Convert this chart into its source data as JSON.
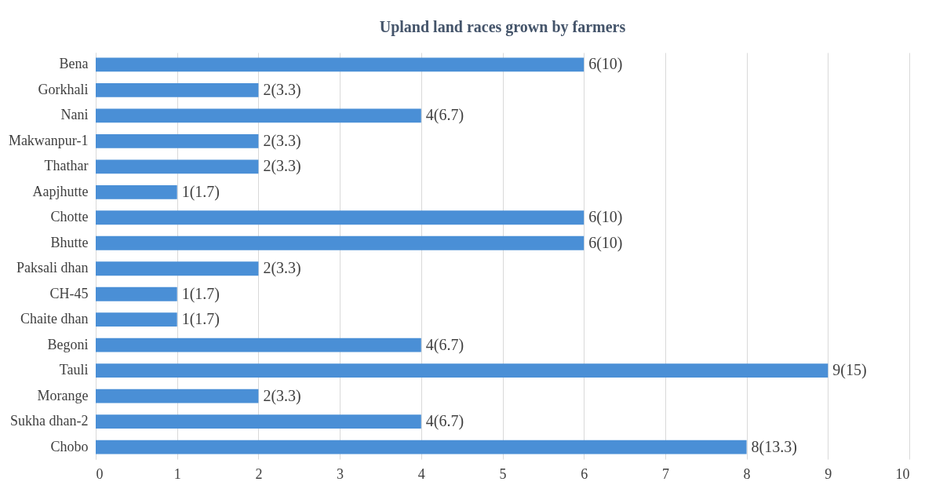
{
  "chart_data": {
    "type": "bar",
    "orientation": "horizontal",
    "title": "Upland land races grown by farmers",
    "categories": [
      "Bena",
      "Gorkhali",
      "Nani",
      "Makwanpur-1",
      "Thathar",
      "Aapjhutte",
      "Chotte",
      "Bhutte",
      "Paksali dhan",
      "CH-45",
      "Chaite dhan",
      "Begoni",
      "Tauli",
      "Morange",
      "Sukha dhan-2",
      "Chobo"
    ],
    "values": [
      6,
      2,
      4,
      2,
      2,
      1,
      6,
      6,
      2,
      1,
      1,
      4,
      9,
      2,
      4,
      8
    ],
    "value_labels": [
      "6(10)",
      "2(3.3)",
      "4(6.7)",
      "2(3.3)",
      "2(3.3)",
      "1(1.7)",
      "6(10)",
      "6(10)",
      "2(3.3)",
      "1(1.7)",
      "1(1.7)",
      "4(6.7)",
      "9(15)",
      "2(3.3)",
      "4(6.7)",
      "8(13.3)"
    ],
    "color": "#4a8fd6",
    "xlim": [
      0,
      10
    ],
    "xticks": [
      0,
      1,
      2,
      3,
      4,
      5,
      6,
      7,
      8,
      9,
      10
    ],
    "grid": "x"
  }
}
